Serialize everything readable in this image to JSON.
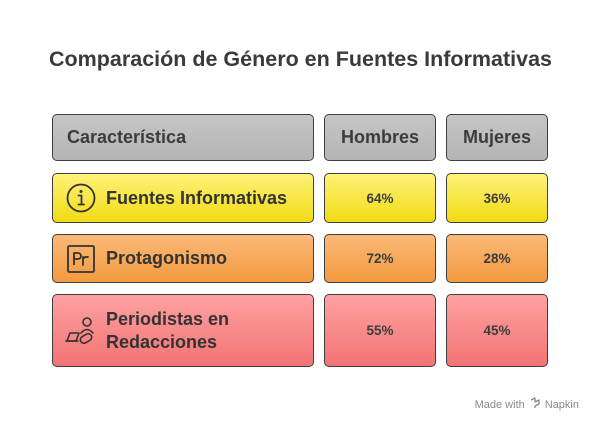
{
  "title": "Comparación de Género en Fuentes Informativas",
  "header": {
    "feature": "Característica",
    "men": "Hombres",
    "women": "Mujeres"
  },
  "rows": [
    {
      "label": "Fuentes Informativas",
      "men": "64%",
      "women": "36%",
      "icon": "info-circle-icon",
      "color": "#f5e024"
    },
    {
      "label_line1": "Protagonismo",
      "men": "72%",
      "women": "28%",
      "icon": "pr-box-icon",
      "color": "#f6a250"
    },
    {
      "label_line1": "Periodistas en",
      "label_line2": "Redacciones",
      "men": "55%",
      "women": "45%",
      "icon": "journalist-laptop-icon",
      "color": "#f48080"
    }
  ],
  "footer": {
    "made_with": "Made with",
    "brand": "Napkin"
  }
}
